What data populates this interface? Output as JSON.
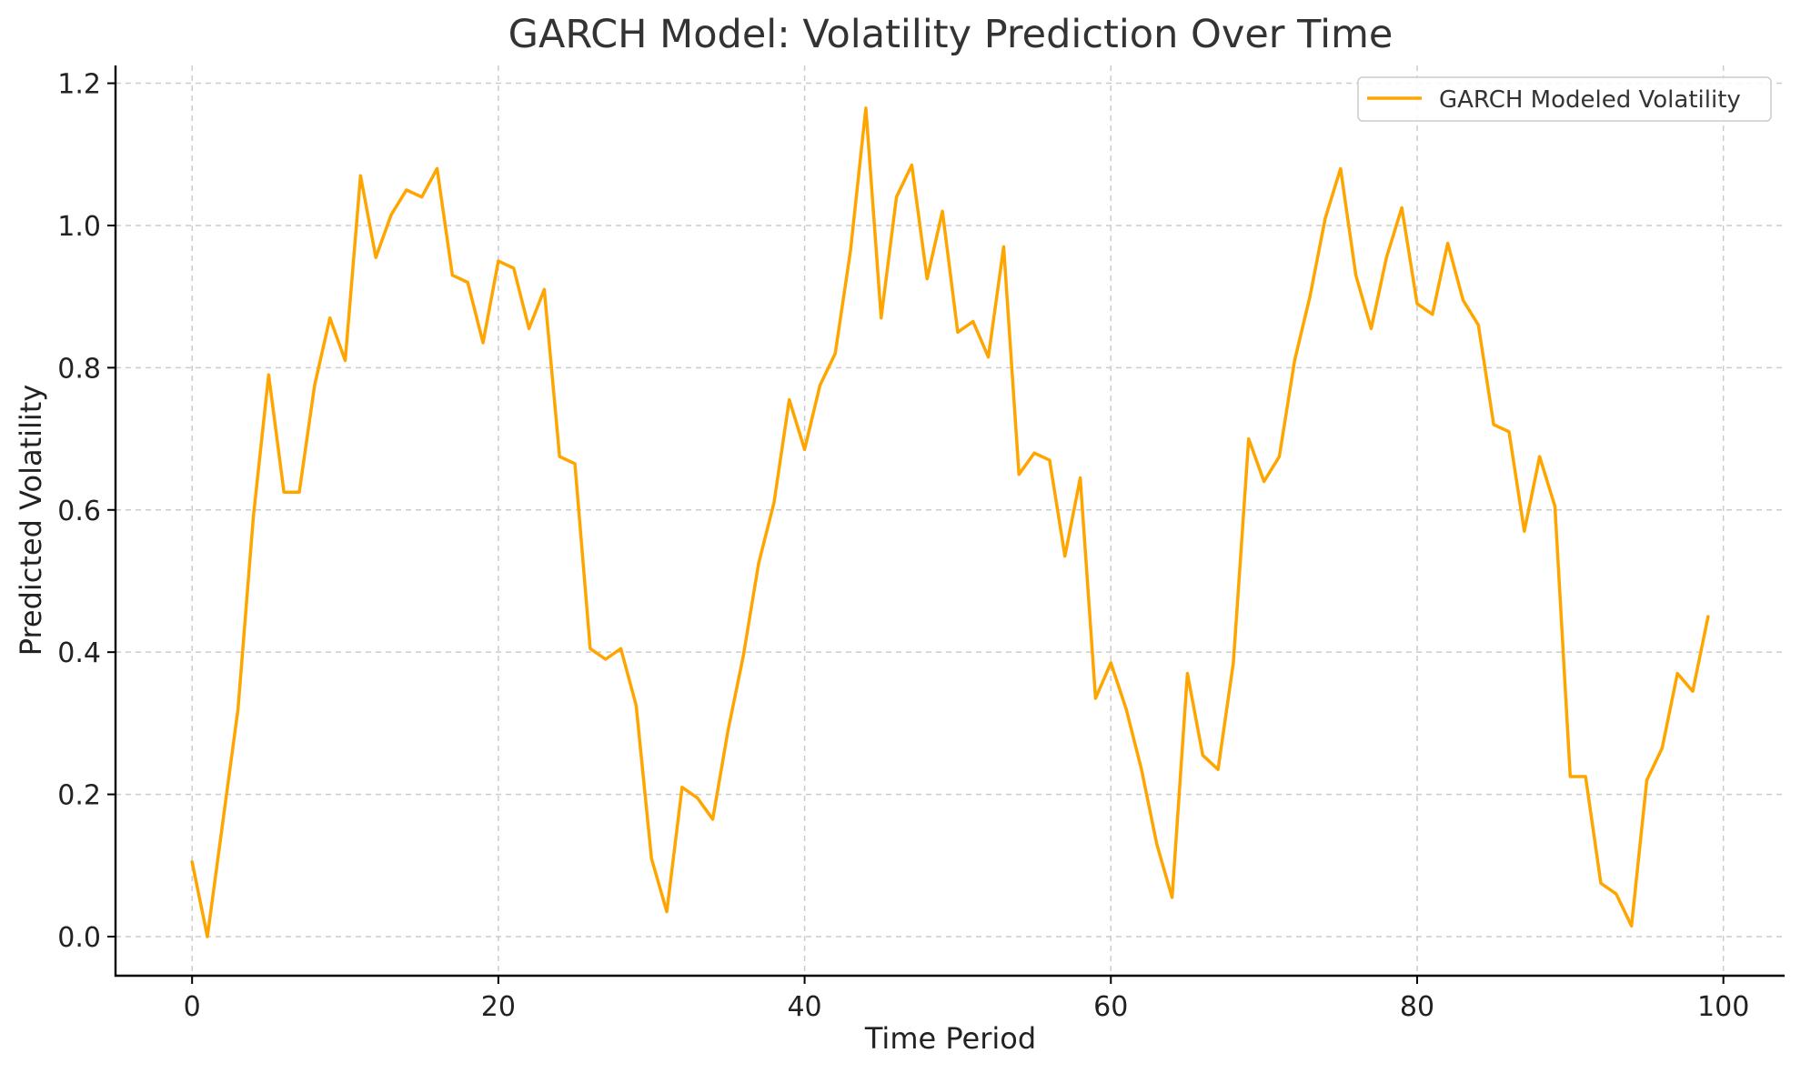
{
  "chart_data": {
    "type": "line",
    "title": "GARCH Model: Volatility Prediction Over Time",
    "xlabel": "Time Period",
    "ylabel": "Predicted Volatility",
    "xlim": [
      -5,
      104
    ],
    "ylim": [
      -0.055,
      1.225
    ],
    "xticks": [
      0,
      20,
      40,
      60,
      80,
      100
    ],
    "xtick_labels": [
      "0",
      "20",
      "40",
      "60",
      "80",
      "100"
    ],
    "yticks": [
      0.0,
      0.2,
      0.4,
      0.6,
      0.8,
      1.0,
      1.2
    ],
    "ytick_labels": [
      "0.0",
      "0.2",
      "0.4",
      "0.6",
      "0.8",
      "1.0",
      "1.2"
    ],
    "grid": true,
    "legend_position": "top-right",
    "series": [
      {
        "name": "GARCH Modeled Volatility",
        "color": "#ffa500",
        "x": [
          0,
          1,
          2,
          3,
          4,
          5,
          6,
          7,
          8,
          9,
          10,
          11,
          12,
          13,
          14,
          15,
          16,
          17,
          18,
          19,
          20,
          21,
          22,
          23,
          24,
          25,
          26,
          27,
          28,
          29,
          30,
          31,
          32,
          33,
          34,
          35,
          36,
          37,
          38,
          39,
          40,
          41,
          42,
          43,
          44,
          45,
          46,
          47,
          48,
          49,
          50,
          51,
          52,
          53,
          54,
          55,
          56,
          57,
          58,
          59,
          60,
          61,
          62,
          63,
          64,
          65,
          66,
          67,
          68,
          69,
          70,
          71,
          72,
          73,
          74,
          75,
          76,
          77,
          78,
          79,
          80,
          81,
          82,
          83,
          84,
          85,
          86,
          87,
          88,
          89,
          90,
          91,
          92,
          93,
          94,
          95,
          96,
          97,
          98,
          99
        ],
        "values": [
          0.105,
          0.0,
          0.16,
          0.32,
          0.59,
          0.79,
          0.625,
          0.625,
          0.775,
          0.87,
          0.81,
          1.07,
          0.955,
          1.015,
          1.05,
          1.04,
          1.08,
          0.93,
          0.92,
          0.835,
          0.95,
          0.94,
          0.855,
          0.91,
          0.675,
          0.665,
          0.405,
          0.39,
          0.405,
          0.325,
          0.11,
          0.035,
          0.21,
          0.195,
          0.165,
          0.29,
          0.395,
          0.525,
          0.61,
          0.755,
          0.685,
          0.775,
          0.82,
          0.965,
          1.165,
          0.87,
          1.04,
          1.085,
          0.925,
          1.02,
          0.85,
          0.865,
          0.815,
          0.97,
          0.65,
          0.68,
          0.67,
          0.535,
          0.645,
          0.335,
          0.385,
          0.32,
          0.235,
          0.13,
          0.055,
          0.37,
          0.255,
          0.235,
          0.385,
          0.7,
          0.64,
          0.675,
          0.81,
          0.9,
          1.01,
          1.08,
          0.93,
          0.855,
          0.955,
          1.025,
          0.89,
          0.875,
          0.975,
          0.895,
          0.86,
          0.72,
          0.71,
          0.57,
          0.675,
          0.605,
          0.225,
          0.225,
          0.075,
          0.06,
          0.015,
          0.22,
          0.265,
          0.37,
          0.345,
          0.45
        ]
      }
    ]
  }
}
